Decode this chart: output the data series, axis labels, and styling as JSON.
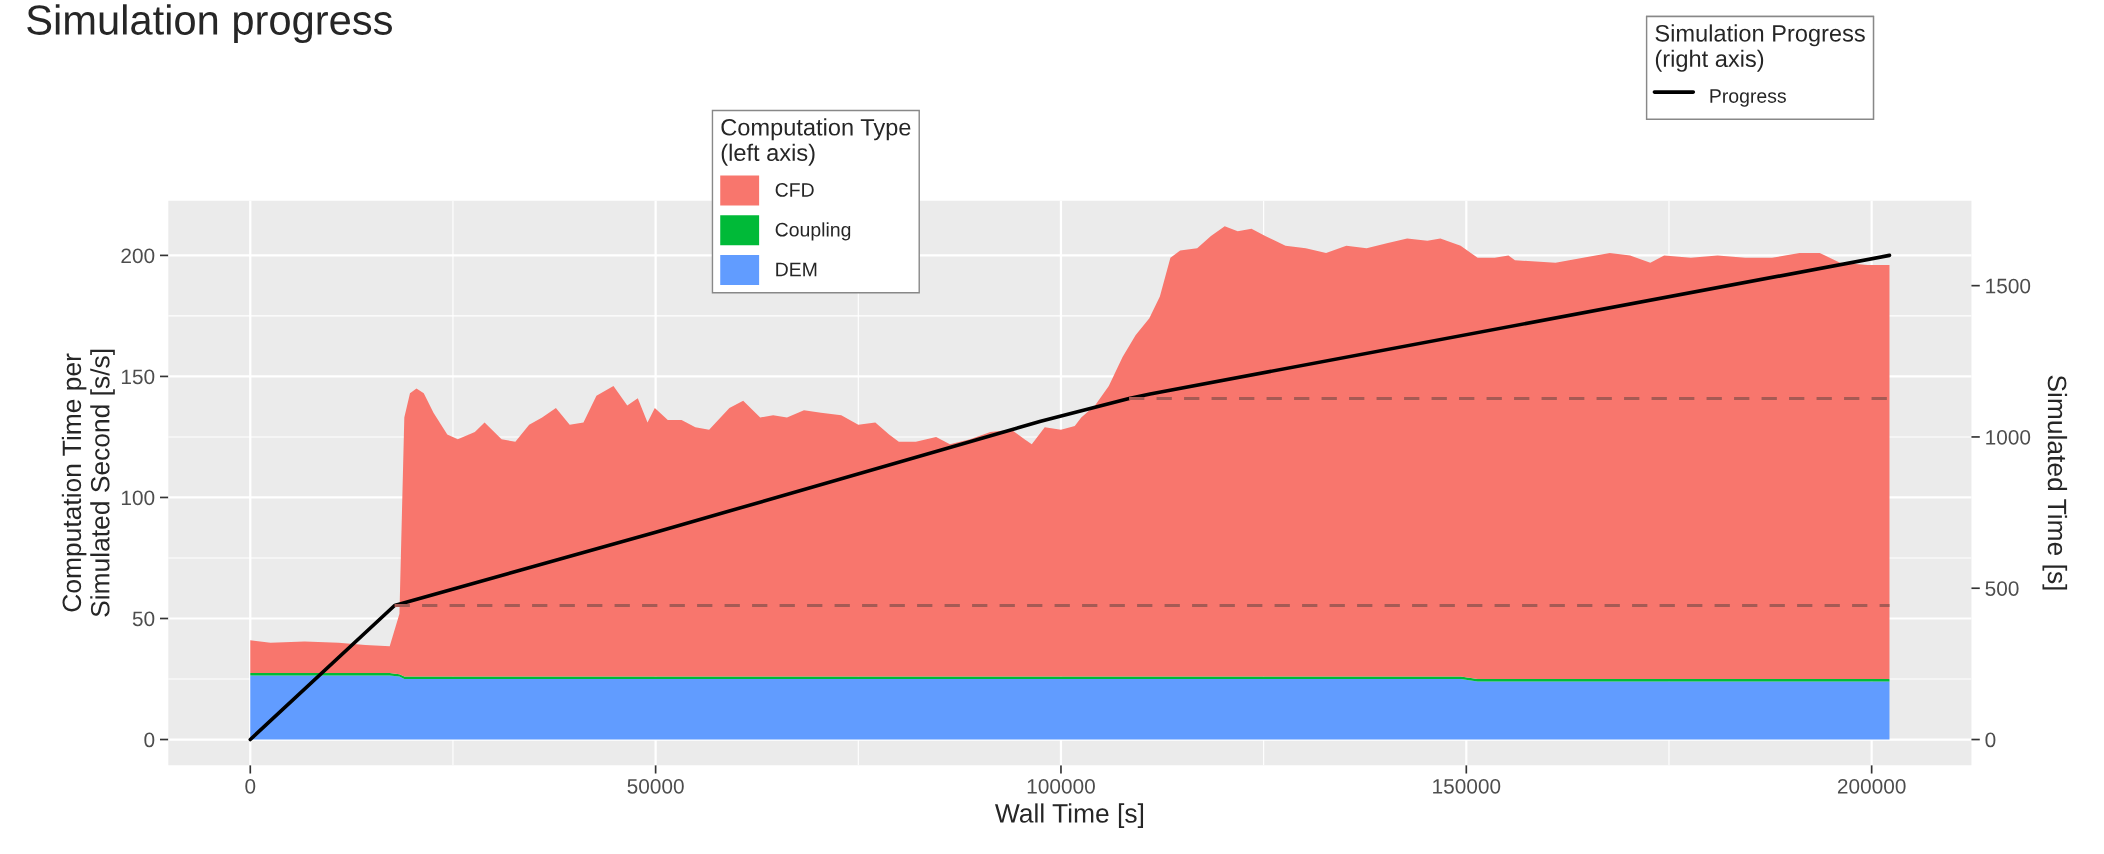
{
  "chart_data": {
    "type": "area",
    "title": "Simulation progress",
    "xlabel": "Wall Time [s]",
    "ylabel": "Computation Time per\nSimulated Second [s/s]",
    "y2label": "Simulated Time [s]",
    "legend_title": [
      "Computation Type\n(left axis)",
      "Simulation Progress\n(right axis)"
    ],
    "stacked": true,
    "legend": "top",
    "grid": true,
    "xlim": [
      -10110,
      212310
    ],
    "xticks": [
      0,
      50000,
      100000,
      150000,
      200000
    ],
    "ylim": [
      -10.6,
      222.6
    ],
    "yticks": [
      0,
      50,
      100,
      150,
      200
    ],
    "y2lim": [
      -84.8,
      1780.8
    ],
    "y2ticks": [
      0,
      500,
      1000,
      1500
    ],
    "x": [
      0,
      2500,
      6700,
      10900,
      14200,
      17200,
      18400,
      19000,
      19700,
      20500,
      21400,
      22600,
      24300,
      25600,
      27700,
      28900,
      31000,
      32700,
      34400,
      36000,
      37700,
      39400,
      41100,
      42700,
      44800,
      46500,
      47800,
      49000,
      49900,
      51500,
      53200,
      54900,
      56600,
      59100,
      60800,
      62900,
      64500,
      66200,
      68300,
      70400,
      72900,
      75000,
      77100,
      78800,
      80000,
      82100,
      84600,
      86300,
      88800,
      91300,
      93900,
      95500,
      96400,
      98000,
      100000,
      101700,
      102500,
      104200,
      105900,
      107600,
      109200,
      110900,
      112200,
      113500,
      114700,
      116800,
      118500,
      120200,
      121800,
      123500,
      125200,
      127700,
      130200,
      132700,
      135200,
      137700,
      140200,
      142700,
      145200,
      146800,
      149300,
      151400,
      153500,
      155200,
      156000,
      161000,
      164400,
      167700,
      170200,
      172700,
      174400,
      177700,
      181000,
      184400,
      187700,
      191100,
      193600,
      196100,
      199500,
      202200
    ],
    "series": [
      {
        "name": "DEM",
        "color": "#619cff",
        "values": [
          26.5,
          26.5,
          26.5,
          26.5,
          26.5,
          26.5,
          26,
          25,
          25,
          25,
          25,
          25,
          25,
          25,
          25,
          25,
          25,
          25,
          25,
          25,
          25,
          25,
          25,
          25,
          25,
          25,
          25,
          25,
          25,
          25,
          25,
          25,
          25,
          25,
          25,
          25,
          25,
          25,
          25,
          25,
          25,
          25,
          25,
          25,
          25,
          25,
          25,
          25,
          25,
          25,
          25,
          25,
          25,
          25,
          25,
          25,
          25,
          25,
          25,
          25,
          25,
          25,
          25,
          25,
          25,
          25,
          25,
          25,
          25,
          25,
          25,
          25,
          25,
          25,
          25,
          25,
          25,
          25,
          25,
          25,
          25,
          24,
          24,
          24,
          24,
          24,
          24,
          24,
          24,
          24,
          24,
          24,
          24,
          24,
          24,
          24,
          24,
          24,
          24,
          24
        ]
      },
      {
        "name": "Coupling",
        "color": "#00ba38",
        "values": [
          1,
          1,
          1,
          1,
          1,
          1,
          1,
          1,
          1,
          1,
          1,
          1,
          1,
          1,
          1,
          1,
          1,
          1,
          1,
          1,
          1,
          1,
          1,
          1,
          1,
          1,
          1,
          1,
          1,
          1,
          1,
          1,
          1,
          1,
          1,
          1,
          1,
          1,
          1,
          1,
          1,
          1,
          1,
          1,
          1,
          1,
          1,
          1,
          1,
          1,
          1,
          1,
          1,
          1,
          1,
          1,
          1,
          1,
          1,
          1,
          1,
          1,
          1,
          1,
          1,
          1,
          1,
          1,
          1,
          1,
          1,
          1,
          1,
          1,
          1,
          1,
          1,
          1,
          1,
          1,
          1,
          1,
          1,
          1,
          1,
          1,
          1,
          1,
          1,
          1,
          1,
          1,
          1,
          1,
          1,
          1,
          1,
          1,
          1,
          1
        ]
      },
      {
        "name": "CFD",
        "color": "#f8766d",
        "values": [
          13.5,
          12.5,
          13,
          12.5,
          11.5,
          11,
          25,
          107,
          117,
          119,
          117,
          109,
          100,
          98,
          101,
          105,
          98,
          97,
          104,
          107,
          111,
          104,
          105,
          116,
          120,
          112,
          115,
          105,
          111,
          106,
          106,
          103,
          102,
          111,
          114,
          107,
          108,
          107,
          110,
          109,
          108,
          104,
          105,
          100,
          97,
          97,
          99,
          96,
          98,
          101,
          102,
          98,
          96,
          103,
          102,
          103.5,
          107,
          112,
          120,
          132,
          141,
          148,
          157,
          173,
          176,
          177,
          182,
          186,
          184,
          185,
          182,
          178,
          177,
          175,
          178,
          177,
          179,
          181,
          180,
          181,
          178,
          174,
          174,
          175,
          173,
          172,
          174,
          176,
          175,
          172,
          175,
          174,
          175,
          174,
          174,
          176,
          176,
          172,
          171,
          171
        ]
      },
      {
        "name": "Progress",
        "type": "line",
        "axis": "y2",
        "color": "#000000",
        "line_style": "solid",
        "x": [
          0,
          17800,
          50000,
          97500,
          108400,
          111000,
          202200
        ],
        "values": [
          0,
          443,
          685,
          1052,
          1127,
          1142,
          1600
        ]
      },
      {
        "type": "line",
        "axis": "y2",
        "color": "#a65a54",
        "line_style": "dashed",
        "x": [
          17800,
          202200
        ],
        "values": [
          443,
          443
        ]
      },
      {
        "type": "line",
        "axis": "y2",
        "color": "#a65a54",
        "line_style": "dashed",
        "x": [
          108400,
          202200
        ],
        "values": [
          1127,
          1127
        ]
      }
    ]
  }
}
